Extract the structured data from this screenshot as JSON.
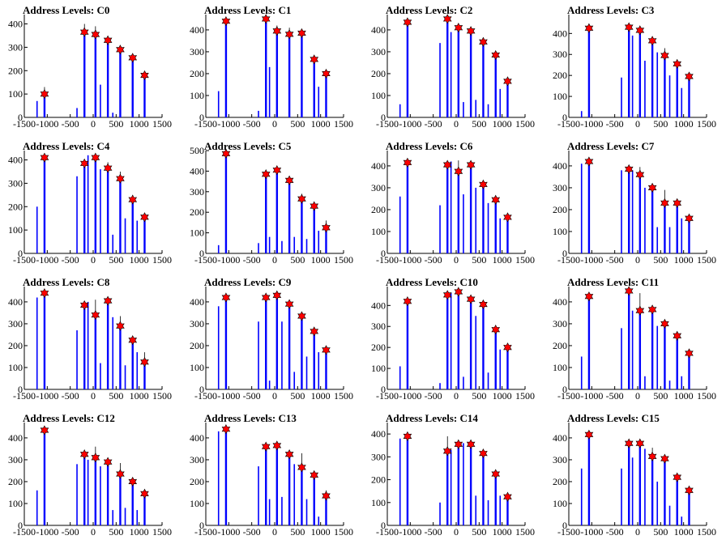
{
  "chart_data": [
    {
      "type": "bar",
      "title": "Address Levels: C0",
      "xlim": [
        -1500,
        1500
      ],
      "ylim": [
        0,
        440
      ],
      "yticks": [
        0,
        100,
        200,
        300,
        400
      ],
      "x": [
        -1060,
        -190,
        50,
        320,
        590,
        860,
        1120
      ],
      "values": [
        100,
        365,
        355,
        330,
        290,
        255,
        180
      ],
      "peaks": [
        130,
        400,
        390,
        340,
        300,
        260,
        190
      ],
      "bg": [
        70,
        40,
        0,
        140,
        20,
        0,
        0
      ]
    },
    {
      "type": "bar",
      "title": "Address Levels: C1",
      "xlim": [
        -1500,
        1500
      ],
      "ylim": [
        0,
        470
      ],
      "yticks": [
        0,
        100,
        200,
        300,
        400
      ],
      "x": [
        -1060,
        -190,
        50,
        320,
        590,
        860,
        1120
      ],
      "values": [
        440,
        450,
        395,
        380,
        385,
        265,
        200
      ],
      "peaks": [
        440,
        450,
        420,
        410,
        390,
        270,
        210
      ],
      "bg": [
        120,
        30,
        230,
        0,
        0,
        0,
        140
      ]
    },
    {
      "type": "bar",
      "title": "Address Levels: C2",
      "xlim": [
        -1500,
        1500
      ],
      "ylim": [
        0,
        470
      ],
      "yticks": [
        0,
        100,
        200,
        300,
        400
      ],
      "x": [
        -1060,
        -190,
        50,
        320,
        590,
        860,
        1120
      ],
      "values": [
        435,
        450,
        410,
        395,
        345,
        285,
        165
      ],
      "peaks": [
        435,
        455,
        420,
        395,
        350,
        290,
        170
      ],
      "bg": [
        60,
        340,
        390,
        70,
        80,
        60,
        130
      ]
    },
    {
      "type": "bar",
      "title": "Address Levels: C3",
      "xlim": [
        -1500,
        1500
      ],
      "ylim": [
        0,
        490
      ],
      "yticks": [
        0,
        100,
        200,
        300,
        400
      ],
      "x": [
        -1060,
        -190,
        50,
        320,
        590,
        860,
        1120
      ],
      "values": [
        425,
        430,
        415,
        365,
        295,
        255,
        195
      ],
      "peaks": [
        425,
        430,
        420,
        370,
        330,
        265,
        200
      ],
      "bg": [
        30,
        190,
        390,
        270,
        310,
        200,
        140
      ]
    },
    {
      "type": "bar",
      "title": "Address Levels: C4",
      "xlim": [
        -1500,
        1500
      ],
      "ylim": [
        0,
        440
      ],
      "yticks": [
        0,
        100,
        200,
        300,
        400
      ],
      "x": [
        -1060,
        -190,
        50,
        320,
        590,
        860,
        1120
      ],
      "values": [
        410,
        385,
        410,
        365,
        320,
        230,
        155
      ],
      "peaks": [
        410,
        400,
        420,
        390,
        350,
        250,
        160
      ],
      "bg": [
        200,
        330,
        420,
        360,
        80,
        150,
        140
      ]
    },
    {
      "type": "bar",
      "title": "Address Levels: C5",
      "xlim": [
        -1500,
        1500
      ],
      "ylim": [
        0,
        500
      ],
      "yticks": [
        0,
        100,
        200,
        300,
        400,
        500
      ],
      "x": [
        -1060,
        -190,
        50,
        320,
        590,
        860,
        1120
      ],
      "values": [
        485,
        385,
        405,
        355,
        265,
        230,
        125
      ],
      "peaks": [
        485,
        390,
        410,
        360,
        290,
        240,
        160
      ],
      "bg": [
        40,
        50,
        80,
        60,
        80,
        70,
        110
      ]
    },
    {
      "type": "bar",
      "title": "Address Levels: C6",
      "xlim": [
        -1500,
        1500
      ],
      "ylim": [
        0,
        470
      ],
      "yticks": [
        0,
        100,
        200,
        300,
        400
      ],
      "x": [
        -1060,
        -190,
        50,
        320,
        590,
        860,
        1120
      ],
      "values": [
        415,
        405,
        375,
        405,
        315,
        245,
        165
      ],
      "peaks": [
        420,
        410,
        425,
        410,
        325,
        250,
        170
      ],
      "bg": [
        260,
        220,
        420,
        270,
        300,
        230,
        160
      ]
    },
    {
      "type": "bar",
      "title": "Address Levels: C7",
      "xlim": [
        -1500,
        1500
      ],
      "ylim": [
        0,
        470
      ],
      "yticks": [
        0,
        100,
        200,
        300,
        400
      ],
      "x": [
        -1060,
        -190,
        50,
        320,
        590,
        860,
        1120
      ],
      "values": [
        420,
        385,
        360,
        300,
        230,
        230,
        160
      ],
      "peaks": [
        420,
        390,
        395,
        320,
        290,
        240,
        165
      ],
      "bg": [
        410,
        380,
        380,
        300,
        120,
        120,
        160
      ]
    },
    {
      "type": "bar",
      "title": "Address Levels: C8",
      "xlim": [
        -1500,
        1500
      ],
      "ylim": [
        0,
        470
      ],
      "yticks": [
        0,
        100,
        200,
        300,
        400
      ],
      "x": [
        -1060,
        -190,
        50,
        320,
        590,
        860,
        1120
      ],
      "values": [
        440,
        385,
        340,
        405,
        290,
        225,
        125
      ],
      "peaks": [
        440,
        390,
        410,
        410,
        335,
        230,
        170
      ],
      "bg": [
        420,
        270,
        400,
        120,
        330,
        110,
        170
      ]
    },
    {
      "type": "bar",
      "title": "Address Levels: C9",
      "xlim": [
        -1500,
        1500
      ],
      "ylim": [
        0,
        470
      ],
      "yticks": [
        0,
        100,
        200,
        300,
        400
      ],
      "x": [
        -1060,
        -190,
        50,
        320,
        590,
        860,
        1120
      ],
      "values": [
        420,
        420,
        430,
        390,
        335,
        265,
        180
      ],
      "peaks": [
        420,
        425,
        430,
        400,
        340,
        270,
        190
      ],
      "bg": [
        380,
        310,
        40,
        310,
        80,
        150,
        170
      ]
    },
    {
      "type": "bar",
      "title": "Address Levels: C10",
      "xlim": [
        -1500,
        1500
      ],
      "ylim": [
        0,
        490
      ],
      "yticks": [
        0,
        100,
        200,
        300,
        400
      ],
      "x": [
        -1060,
        -190,
        50,
        320,
        590,
        860,
        1120
      ],
      "values": [
        420,
        450,
        465,
        430,
        405,
        285,
        200
      ],
      "peaks": [
        420,
        455,
        470,
        435,
        410,
        290,
        205
      ],
      "bg": [
        110,
        30,
        460,
        60,
        350,
        80,
        190
      ]
    },
    {
      "type": "bar",
      "title": "Address Levels: C11",
      "xlim": [
        -1500,
        1500
      ],
      "ylim": [
        0,
        470
      ],
      "yticks": [
        0,
        100,
        200,
        300,
        400
      ],
      "x": [
        -1060,
        -190,
        50,
        320,
        590,
        860,
        1120
      ],
      "values": [
        425,
        450,
        360,
        365,
        300,
        245,
        165
      ],
      "peaks": [
        425,
        460,
        440,
        365,
        310,
        260,
        170
      ],
      "bg": [
        150,
        280,
        360,
        60,
        290,
        40,
        60
      ]
    },
    {
      "type": "bar",
      "title": "Address Levels: C12",
      "xlim": [
        -1500,
        1500
      ],
      "ylim": [
        0,
        470
      ],
      "yticks": [
        0,
        100,
        200,
        300,
        400
      ],
      "x": [
        -1060,
        -190,
        50,
        320,
        590,
        860,
        1120
      ],
      "values": [
        435,
        325,
        310,
        290,
        235,
        200,
        145
      ],
      "peaks": [
        440,
        330,
        360,
        300,
        285,
        210,
        150
      ],
      "bg": [
        160,
        280,
        300,
        270,
        70,
        80,
        70
      ]
    },
    {
      "type": "bar",
      "title": "Address Levels: C13",
      "xlim": [
        -1500,
        1500
      ],
      "ylim": [
        0,
        470
      ],
      "yticks": [
        0,
        100,
        200,
        300,
        400
      ],
      "x": [
        -1060,
        -190,
        50,
        320,
        590,
        860,
        1120
      ],
      "values": [
        440,
        360,
        365,
        325,
        265,
        230,
        135
      ],
      "peaks": [
        440,
        365,
        370,
        330,
        330,
        240,
        160
      ],
      "bg": [
        430,
        270,
        120,
        130,
        280,
        120,
        40
      ]
    },
    {
      "type": "bar",
      "title": "Address Levels: C14",
      "xlim": [
        -1500,
        1500
      ],
      "ylim": [
        0,
        450
      ],
      "yticks": [
        0,
        100,
        200,
        300,
        400
      ],
      "x": [
        -1060,
        -190,
        50,
        320,
        590,
        860,
        1120
      ],
      "values": [
        390,
        325,
        355,
        355,
        315,
        225,
        125
      ],
      "peaks": [
        400,
        390,
        365,
        360,
        320,
        240,
        130
      ],
      "bg": [
        380,
        100,
        330,
        360,
        130,
        110,
        130
      ]
    },
    {
      "type": "bar",
      "title": "Address Levels: C15",
      "xlim": [
        -1500,
        1500
      ],
      "ylim": [
        0,
        470
      ],
      "yticks": [
        0,
        100,
        200,
        300,
        400
      ],
      "x": [
        -1060,
        -190,
        50,
        320,
        590,
        860,
        1120
      ],
      "values": [
        415,
        375,
        375,
        315,
        305,
        220,
        160
      ],
      "peaks": [
        420,
        380,
        380,
        355,
        300,
        230,
        165
      ],
      "bg": [
        260,
        260,
        310,
        350,
        200,
        90,
        40
      ]
    }
  ],
  "xticks": [
    -1500,
    -1000,
    -500,
    0,
    500,
    1000,
    1500
  ],
  "colors": {
    "bars": "#0000ff",
    "markers": "#ff0000",
    "marker_edge": "#000000",
    "axis": "#000000"
  }
}
